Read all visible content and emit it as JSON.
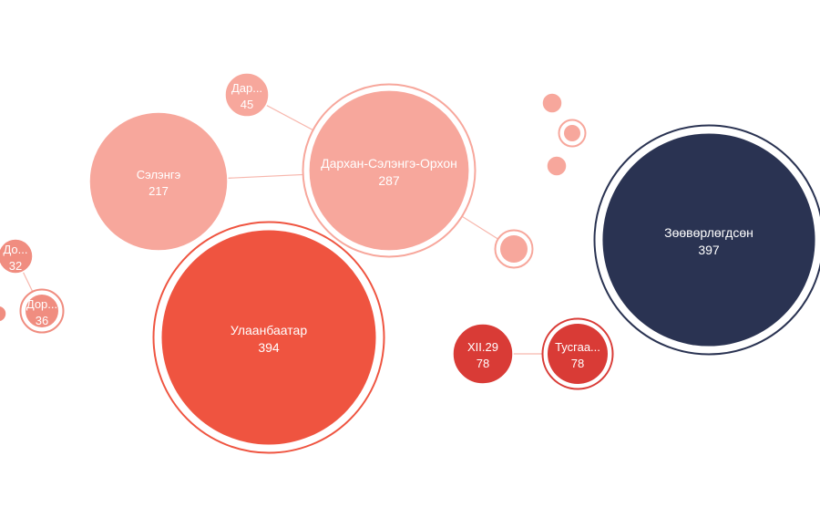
{
  "chart_data": {
    "type": "bubble",
    "colors": {
      "light": "#f7a79c",
      "medium": "#f08d80",
      "red": "#ef5440",
      "dark_red": "#d93b36",
      "navy": "#2a3352",
      "link": "#f7b7ad"
    },
    "nodes": [
      {
        "id": "darkhan-selenge-orkhon",
        "label": "Дархан-Сэлэнгэ-Орхон",
        "value": 287,
        "color": "light",
        "ring": true
      },
      {
        "id": "selenge",
        "label": "Сэлэнгэ",
        "value": 217,
        "color": "light",
        "ring": false
      },
      {
        "id": "darkhan",
        "label": "Дар...",
        "value": 45,
        "color": "light",
        "ring": false
      },
      {
        "id": "ulaanbaatar",
        "label": "Улаанбаатар",
        "value": 394,
        "color": "red",
        "ring": true
      },
      {
        "id": "zoovorlogdson",
        "label": "Зөөвөрлөгдсөн",
        "value": 397,
        "color": "navy",
        "ring": true
      },
      {
        "id": "xii29",
        "label": "XII.29",
        "value": 78,
        "color": "dark_red",
        "ring": false
      },
      {
        "id": "tusgaar",
        "label": "Тусгаа...",
        "value": 78,
        "color": "dark_red",
        "ring": true
      },
      {
        "id": "dornod",
        "label": "До...",
        "value": 32,
        "color": "medium",
        "ring": false
      },
      {
        "id": "dornogovi",
        "label": "Дор...",
        "value": 36,
        "color": "medium",
        "ring": true
      },
      {
        "id": "unlabeled-1",
        "label": "",
        "value": null,
        "color": "light",
        "ring": true
      },
      {
        "id": "unlabeled-2",
        "label": "",
        "value": null,
        "color": "light",
        "ring": false
      },
      {
        "id": "unlabeled-3",
        "label": "",
        "value": null,
        "color": "light",
        "ring": true
      },
      {
        "id": "unlabeled-4",
        "label": "",
        "value": null,
        "color": "light",
        "ring": false
      },
      {
        "id": "unlabeled-5",
        "label": "",
        "value": null,
        "color": "medium",
        "ring": false
      }
    ],
    "links": [
      [
        "darkhan-selenge-orkhon",
        "selenge"
      ],
      [
        "darkhan-selenge-orkhon",
        "darkhan"
      ],
      [
        "darkhan-selenge-orkhon",
        "unlabeled-1"
      ],
      [
        "xii29",
        "tusgaar"
      ],
      [
        "dornod",
        "dornogovi"
      ]
    ]
  }
}
